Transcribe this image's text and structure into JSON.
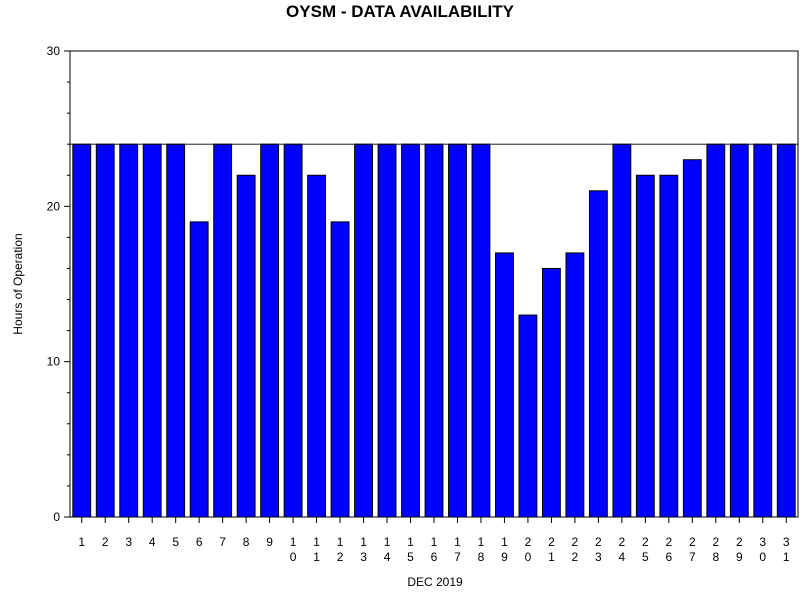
{
  "chart_data": {
    "type": "bar",
    "title": "OYSM - DATA AVAILABILITY",
    "xlabel": "DEC 2019",
    "ylabel": "Hours of Operation",
    "categories": [
      "1",
      "2",
      "3",
      "4",
      "5",
      "6",
      "7",
      "8",
      "9",
      "10",
      "11",
      "12",
      "13",
      "14",
      "15",
      "16",
      "17",
      "18",
      "19",
      "20",
      "21",
      "22",
      "23",
      "24",
      "25",
      "26",
      "27",
      "28",
      "29",
      "30",
      "31"
    ],
    "values": [
      24,
      24,
      24,
      24,
      24,
      19,
      24,
      22,
      24,
      24,
      22,
      19,
      24,
      24,
      24,
      24,
      24,
      24,
      17,
      13,
      16,
      17,
      21,
      24,
      22,
      22,
      23,
      24,
      24,
      24,
      24
    ],
    "ylim": [
      0,
      30
    ],
    "yticks": [
      0,
      10,
      20,
      30
    ],
    "reference_line": 24,
    "grid": false,
    "legend": "none",
    "bar_color": "#0000ff",
    "bar_edge_color": "#000000"
  }
}
